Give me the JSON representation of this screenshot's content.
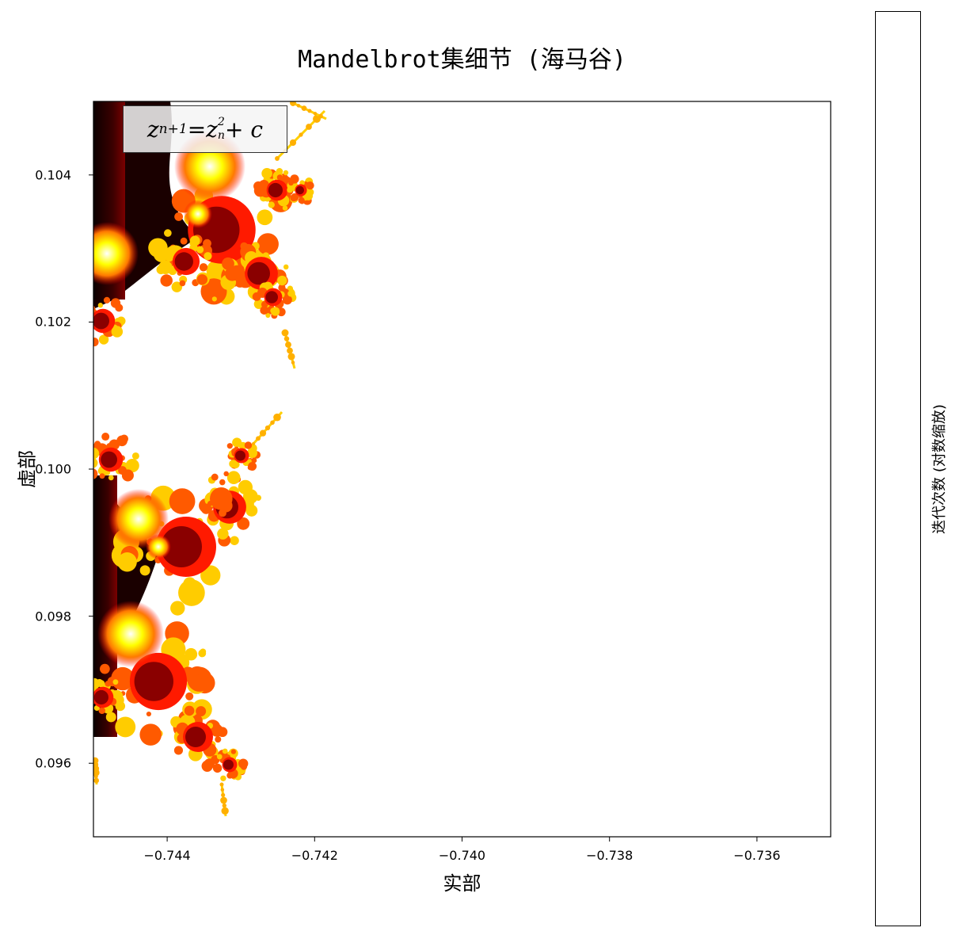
{
  "chart_data": {
    "type": "heatmap",
    "title": "Mandelbrot集细节 (海马谷)",
    "xlabel": "实部",
    "ylabel": "虚部",
    "xlim": [
      -0.745,
      -0.735
    ],
    "ylim": [
      0.095,
      0.105
    ],
    "xticks": [
      -0.744,
      -0.742,
      -0.74,
      -0.738,
      -0.736
    ],
    "xtick_labels": [
      "−0.744",
      "−0.742",
      "−0.740",
      "−0.738",
      "−0.736"
    ],
    "yticks": [
      0.096,
      0.098,
      0.1,
      0.102,
      0.104
    ],
    "ytick_labels": [
      "0.096",
      "0.098",
      "0.100",
      "0.102",
      "0.104"
    ],
    "colormap": "hot",
    "colormap_colors": [
      "#0b0000",
      "#ff0000",
      "#ffff00",
      "#ffffff"
    ],
    "colorbar_label": "迭代次数 (对数缩放)",
    "annotation": "z_{n+1} = z_n^2 + c",
    "annotation_parts": {
      "lhs": "z",
      "lhs_sub": "n+1",
      "eq": " = ",
      "rhs": "z",
      "rhs_sup": "2",
      "rhs_sub": "n",
      "tail": " + c"
    },
    "grid": false
  }
}
